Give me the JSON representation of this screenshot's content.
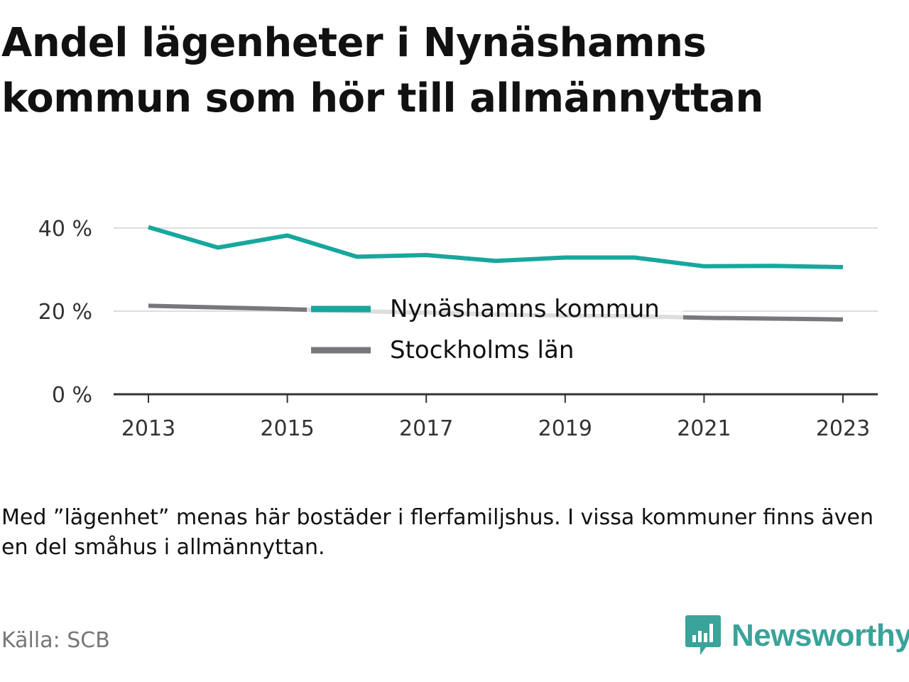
{
  "title": "Andel lägenheter i Nynäshamns kommun som hör till allmännyttan",
  "note": "Med ”lägenhet” menas här bostäder i flerfamiljshus. I vissa kommuner finns även en del småhus i allmännyttan.",
  "source": "Källa: SCB",
  "brand": "Newsworthy",
  "colors": {
    "nynashamn": "#17a79d",
    "stockholm": "#77777d",
    "grid": "#dddddd",
    "axis": "#333333",
    "brand": "#3aa39a"
  },
  "chart_data": {
    "type": "line",
    "x": [
      2013,
      2014,
      2015,
      2016,
      2017,
      2018,
      2019,
      2020,
      2021,
      2022,
      2023
    ],
    "x_ticks": [
      "2013",
      "2015",
      "2017",
      "2019",
      "2021",
      "2023"
    ],
    "y_ticks": [
      "0 %",
      "20 %",
      "40 %"
    ],
    "ylim": [
      0,
      40
    ],
    "grid": true,
    "legend_position": "center",
    "series": [
      {
        "name": "Nynäshamns kommun",
        "values": [
          40.2,
          35.3,
          38.2,
          33.1,
          33.5,
          32.1,
          32.9,
          32.9,
          30.8,
          30.9,
          30.6
        ]
      },
      {
        "name": "Stockholms län",
        "values": [
          21.3,
          20.9,
          20.5,
          20.0,
          19.6,
          19.2,
          18.9,
          18.8,
          18.4,
          18.2,
          18.0
        ]
      }
    ]
  }
}
